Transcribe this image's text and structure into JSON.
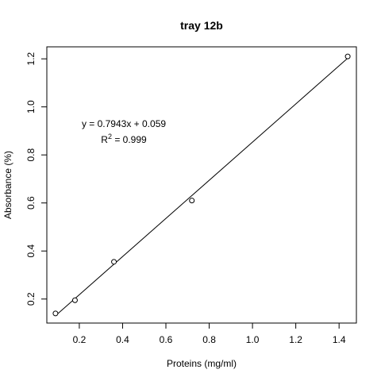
{
  "chart_data": {
    "type": "scatter",
    "title": "tray 12b",
    "xlabel": "Proteins (mg/ml)",
    "ylabel": "Absorbance (%)",
    "xlim": [
      0.05,
      1.48
    ],
    "ylim": [
      0.1,
      1.25
    ],
    "x_ticks": [
      0.2,
      0.4,
      0.6,
      0.8,
      1.0,
      1.2,
      1.4
    ],
    "x_tick_labels": [
      "0.2",
      "0.4",
      "0.6",
      "0.8",
      "1.0",
      "1.2",
      "1.4"
    ],
    "y_ticks": [
      0.2,
      0.4,
      0.6,
      0.8,
      1.0,
      1.2
    ],
    "y_tick_labels": [
      "0.2",
      "0.4",
      "0.6",
      "0.8",
      "1.0",
      "1.2"
    ],
    "points": [
      {
        "x": 0.09,
        "y": 0.14
      },
      {
        "x": 0.18,
        "y": 0.195
      },
      {
        "x": 0.36,
        "y": 0.355
      },
      {
        "x": 0.72,
        "y": 0.61
      },
      {
        "x": 1.44,
        "y": 1.21
      }
    ],
    "fit": {
      "slope": 0.7943,
      "intercept": 0.059,
      "x_start": 0.09,
      "x_end": 1.44
    },
    "annotations": {
      "equation": "y = 0.7943x + 0.059",
      "r2_prefix": "R",
      "r2_sup": "2",
      "r2_value": " = 0.999"
    },
    "grid": false,
    "legend": "none",
    "colors": {
      "line": "#000000",
      "point": "#000000",
      "frame": "#000000"
    }
  }
}
